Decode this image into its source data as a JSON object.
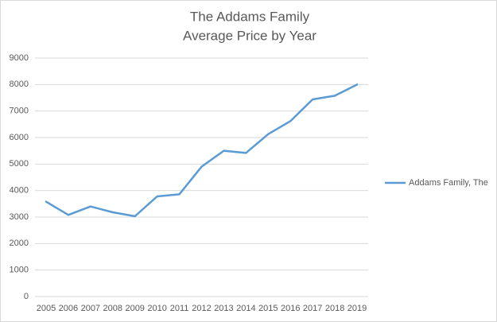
{
  "chart_data": {
    "type": "line",
    "title": "The Addams Family",
    "subtitle": "Average Price by Year",
    "categories": [
      "2005",
      "2006",
      "2007",
      "2008",
      "2009",
      "2010",
      "2011",
      "2012",
      "2013",
      "2014",
      "2015",
      "2016",
      "2017",
      "2018",
      "2019"
    ],
    "series": [
      {
        "name": "Addams Family, The",
        "color": "#5b9bd5",
        "values": [
          3580,
          3080,
          3400,
          3180,
          3030,
          3780,
          3860,
          4900,
          5500,
          5420,
          6130,
          6620,
          7440,
          7580,
          8000
        ]
      }
    ],
    "ylim": [
      0,
      9000
    ],
    "yticks": [
      0,
      1000,
      2000,
      3000,
      4000,
      5000,
      6000,
      7000,
      8000,
      9000
    ],
    "grid": true,
    "legend": "right"
  }
}
